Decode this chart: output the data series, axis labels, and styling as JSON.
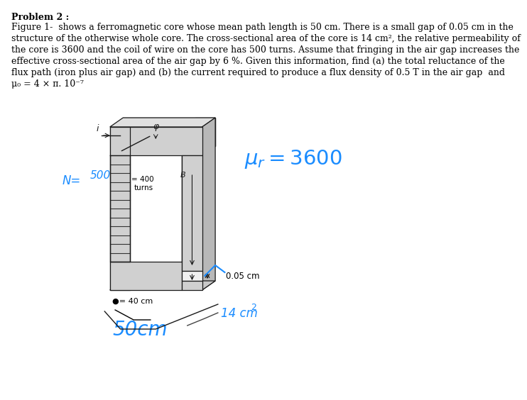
{
  "title": "Problem 2 :",
  "line1": "Figure 1-  shows a ferromagnetic core whose mean path length is 50 cm. There is a small gap of 0.05 cm in the",
  "line2": "structure of the otherwise whole core. The cross-sectional area of the core is 14 cm², the relative permeability of",
  "line3": "the core is 3600 and the coil of wire on the core has 500 turns. Assume that fringing in the air gap increases the",
  "line4": "effective cross-sectional area of the air gap by 6 %. Given this information, find (a) the total reluctance of the",
  "line5": "flux path (iron plus air gap) and (b) the current required to produce a flux density of 0.5 T in the air gap  and",
  "line6": "μ₀ = 4 × π. 10⁻⁷",
  "background_color": "#ffffff",
  "text_color": "#000000",
  "blue_color": "#1a8cff",
  "core_fill": "#d0d0d0",
  "core_top": "#e0e0e0",
  "core_side": "#b8b8b8",
  "core_edge": "#1a1a1a"
}
